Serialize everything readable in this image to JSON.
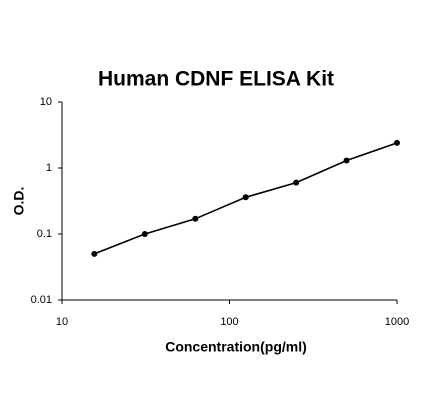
{
  "chart_data": {
    "type": "line",
    "title": "Human CDNF ELISA Kit",
    "x_label": "Concentration(pg/ml)",
    "y_label": "O.D.",
    "x": [
      15.6,
      31.25,
      62.5,
      125,
      250,
      500,
      1000
    ],
    "series": [
      {
        "color": "#000000",
        "values": [
          0.05,
          0.1,
          0.17,
          0.36,
          0.6,
          1.3,
          2.4
        ]
      }
    ],
    "xlim": [
      10,
      1000
    ],
    "ylim": [
      0.01,
      10
    ],
    "xticks": [
      10,
      100,
      1000
    ],
    "yticks": [
      0.01,
      0.1,
      1,
      10
    ],
    "xscale": "log",
    "yscale": "log",
    "markers": true
  }
}
